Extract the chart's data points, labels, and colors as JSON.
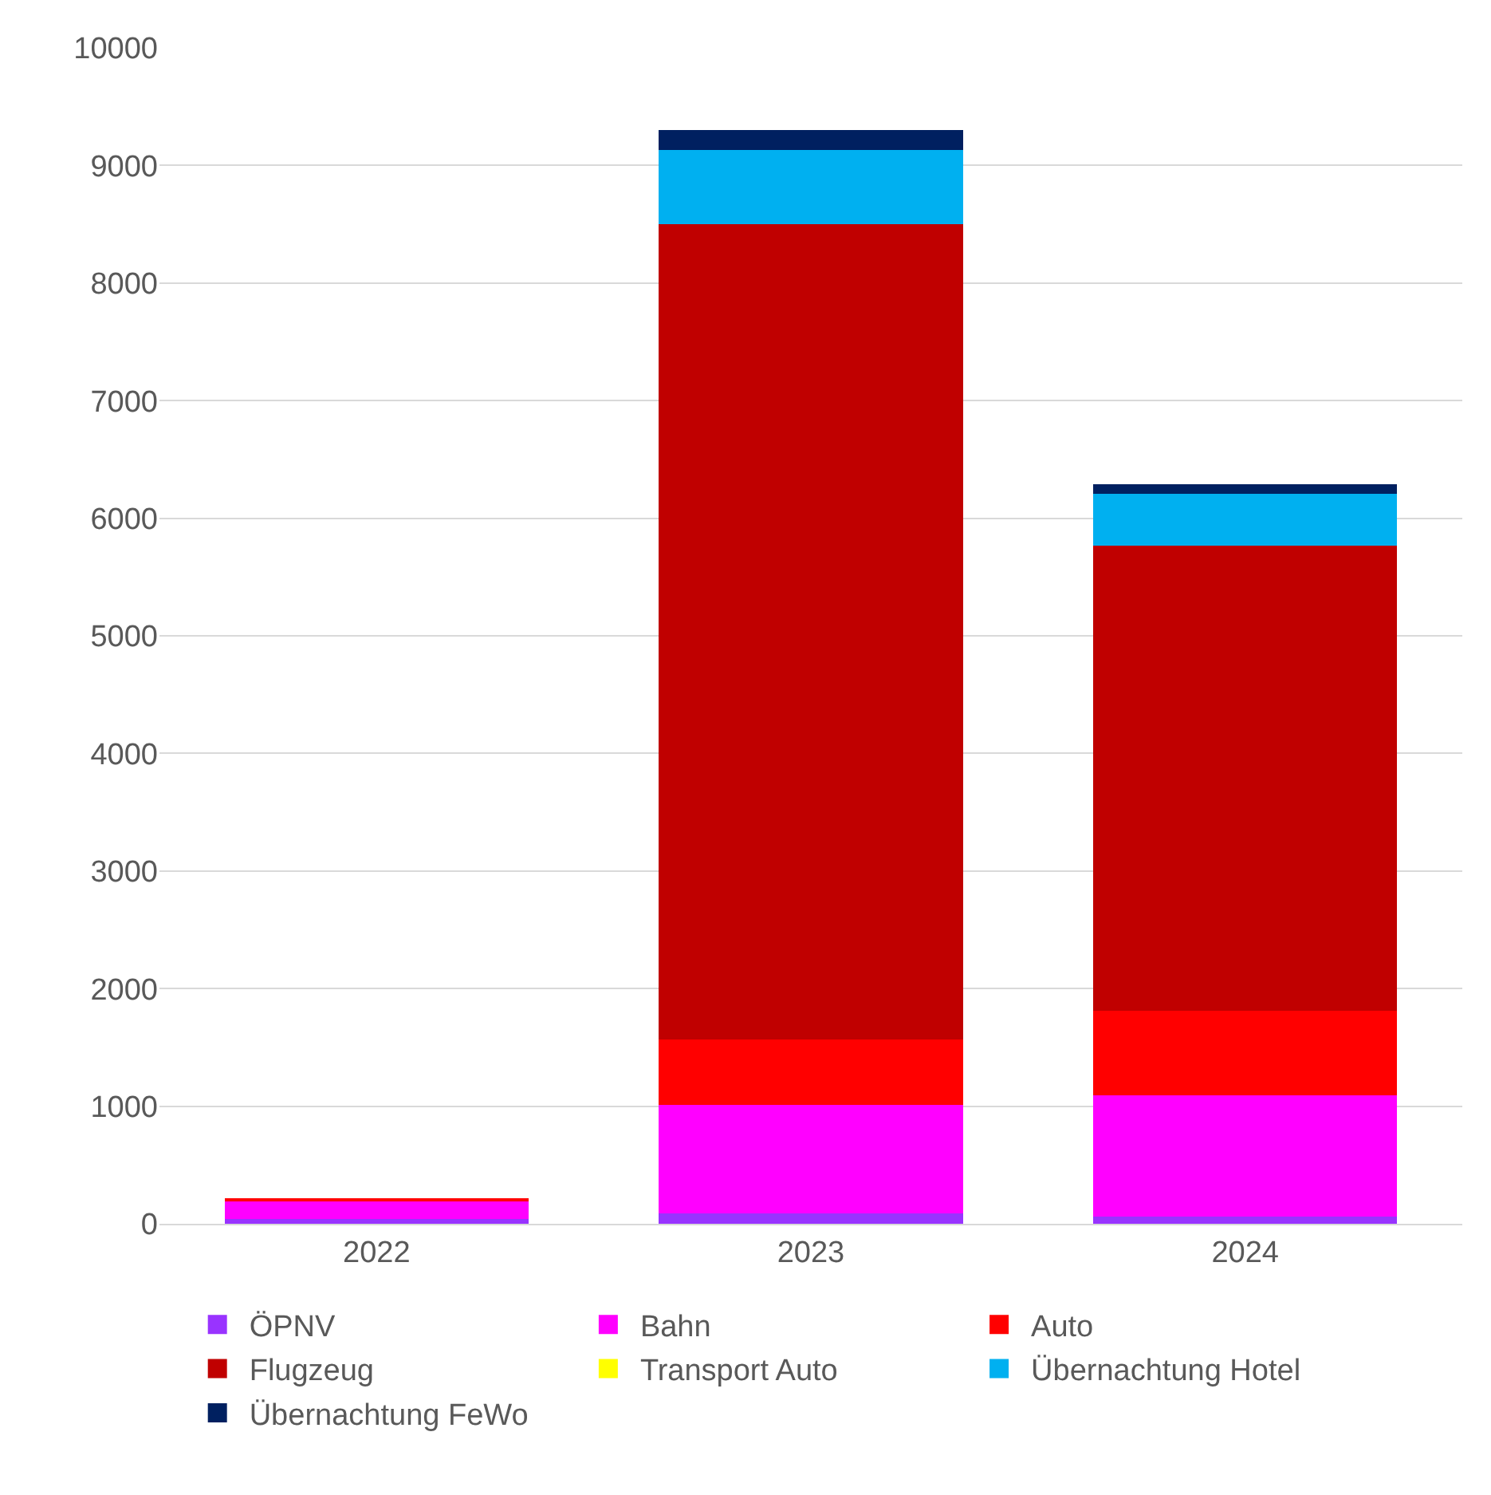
{
  "chart_data": {
    "type": "bar",
    "stacked": true,
    "categories": [
      "2022",
      "2023",
      "2024"
    ],
    "series": [
      {
        "name": "ÖPNV",
        "color": "#9933ff",
        "values": [
          40,
          90,
          60
        ]
      },
      {
        "name": "Bahn",
        "color": "#ff00ff",
        "values": [
          150,
          920,
          1030
        ]
      },
      {
        "name": "Auto",
        "color": "#ff0000",
        "values": [
          30,
          560,
          720
        ]
      },
      {
        "name": "Flugzeug",
        "color": "#c00000",
        "values": [
          0,
          6930,
          3960
        ]
      },
      {
        "name": "Transport Auto",
        "color": "#ffff00",
        "values": [
          0,
          0,
          0
        ]
      },
      {
        "name": "Übernachtung Hotel",
        "color": "#00b0f0",
        "values": [
          0,
          630,
          440
        ]
      },
      {
        "name": "Übernachtung FeWo",
        "color": "#002060",
        "values": [
          0,
          170,
          80
        ]
      }
    ],
    "ylim": [
      0,
      10000
    ],
    "yticks": [
      0,
      1000,
      2000,
      3000,
      4000,
      5000,
      6000,
      7000,
      8000,
      9000,
      10000
    ],
    "grid": "y",
    "legend": "bottom"
  }
}
